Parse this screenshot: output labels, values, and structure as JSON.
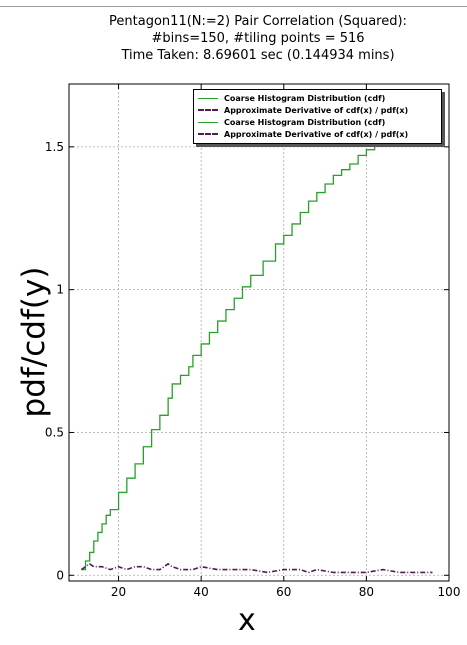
{
  "title_lines": [
    "Pentagon11(N:=2) Pair Correlation (Squared):",
    "#bins=150, #tiling points = 516",
    "Time Taken: 8.69601 sec (0.144934 mins)"
  ],
  "colors": {
    "cdf": "#2aa02a",
    "derivative": "#551a55",
    "grid": "#aaaaaa",
    "axes": "#000000"
  },
  "chart_data": {
    "type": "line",
    "title": "Pentagon11(N:=2) Pair Correlation (Squared): #bins=150, #tiling points = 516 Time Taken: 8.69601 sec (0.144934 mins)",
    "xlabel": "x",
    "ylabel": "pdf/cdf(y)",
    "xlim": [
      8,
      100
    ],
    "ylim": [
      -0.02,
      1.72
    ],
    "grid": true,
    "legend_position": "top-right",
    "xticks": [
      20,
      40,
      60,
      80,
      100
    ],
    "yticks": [
      0,
      0.5,
      1,
      1.5
    ],
    "xtick_labels": [
      "20",
      "40",
      "60",
      "80",
      "100"
    ],
    "ytick_labels": [
      "0",
      "0.5",
      "1",
      "1.5"
    ],
    "series": [
      {
        "name": "Coarse Histogram Distribution (cdf)",
        "style": "solid-step",
        "x": [
          11,
          12,
          13,
          14,
          15,
          16,
          17,
          18,
          20,
          22,
          24,
          26,
          28,
          30,
          32,
          33,
          35,
          37,
          38,
          40,
          42,
          44,
          46,
          48,
          50,
          52,
          55,
          58,
          60,
          62,
          64,
          66,
          68,
          70,
          72,
          74,
          76,
          78,
          80,
          82,
          84
        ],
        "y": [
          0.02,
          0.05,
          0.08,
          0.12,
          0.15,
          0.18,
          0.21,
          0.23,
          0.29,
          0.34,
          0.39,
          0.45,
          0.51,
          0.56,
          0.62,
          0.67,
          0.7,
          0.73,
          0.77,
          0.81,
          0.85,
          0.89,
          0.93,
          0.97,
          1.01,
          1.05,
          1.1,
          1.16,
          1.19,
          1.23,
          1.27,
          1.31,
          1.34,
          1.37,
          1.4,
          1.42,
          1.44,
          1.47,
          1.49,
          1.52,
          1.55
        ]
      },
      {
        "name": "Approximate Derivative of cdf(x) / pdf(x)",
        "style": "dashdot",
        "x": [
          11,
          12,
          13,
          14,
          16,
          18,
          20,
          22,
          24,
          26,
          28,
          30,
          31,
          32,
          33,
          35,
          38,
          40,
          44,
          48,
          52,
          56,
          60,
          64,
          66,
          68,
          72,
          76,
          80,
          84,
          88,
          92,
          96
        ],
        "y": [
          0.02,
          0.03,
          0.04,
          0.03,
          0.03,
          0.02,
          0.03,
          0.02,
          0.03,
          0.03,
          0.02,
          0.02,
          0.03,
          0.04,
          0.03,
          0.02,
          0.02,
          0.03,
          0.02,
          0.02,
          0.02,
          0.01,
          0.02,
          0.02,
          0.01,
          0.02,
          0.01,
          0.01,
          0.01,
          0.02,
          0.01,
          0.01,
          0.01
        ]
      },
      {
        "name": "Coarse Histogram Distribution (cdf)",
        "style": "solid",
        "legend_only": true
      },
      {
        "name": "Approximate Derivative of cdf(x) / pdf(x)",
        "style": "dashdot",
        "legend_only": true
      }
    ]
  }
}
